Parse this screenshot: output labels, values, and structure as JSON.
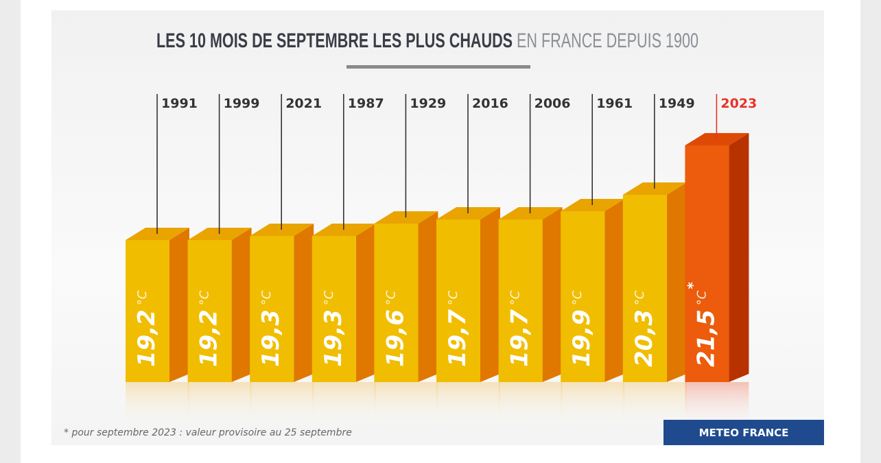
{
  "chart_data": {
    "type": "bar",
    "title": "LES 10 MOIS DE SEPTEMBRE LES PLUS CHAUDS",
    "subtitle": "EN FRANCE DEPUIS 1900",
    "categories": [
      "1991",
      "1999",
      "2021",
      "1987",
      "1929",
      "2016",
      "2006",
      "1961",
      "1949",
      "2023"
    ],
    "values": [
      19.2,
      19.2,
      19.3,
      19.3,
      19.6,
      19.7,
      19.7,
      19.9,
      20.3,
      21.5
    ],
    "value_labels": [
      "19,2",
      "19,2",
      "19,3",
      "19,3",
      "19,6",
      "19,7",
      "19,7",
      "19,9",
      "20,3",
      "21,5"
    ],
    "unit": "°C",
    "highlight": {
      "category": "2023",
      "marker": "*"
    },
    "footnote": "* pour septembre 2023 : valeur provisoire au 25 septembre",
    "source": "METEO FRANCE",
    "colors": {
      "bar_front": "#f0bd00",
      "bar_side": "#e07800",
      "bar_top": "#e9a400",
      "highlight_front": "#ec5c0c",
      "highlight_side": "#b83200",
      "highlight_top": "#de4a06",
      "highlight_label": "#e8322a",
      "source_bg": "#1f4b8e",
      "title": "#3a3d47",
      "subtitle": "#8c8f96"
    }
  }
}
